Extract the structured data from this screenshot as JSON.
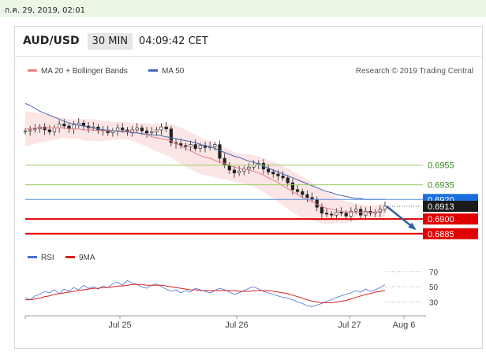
{
  "timestamp": "ก.ค. 29, 2019, 02:01",
  "header": {
    "symbol": "AUD/USD",
    "timeframe": "30 MIN",
    "time": "04:09:42 CET"
  },
  "legend": {
    "ma20_label": "MA 20 + Bollinger Bands",
    "ma50_label": "MA 50",
    "credit": "Research © 2019 Trading Central",
    "rsi_label": "RSI",
    "ma9_label": "9MA"
  },
  "colors": {
    "candle": "#222222",
    "ma20": "#e88080",
    "bb_fill": "#fbe0e0",
    "ma50": "#4a66b0",
    "support_line": "#e00000",
    "resistance_line": "#99cc66",
    "pivot_line": "#5a8de0",
    "pivot_label": "#1a6fe0",
    "current_label": "#1a1a1a",
    "rsi": "#4a6fd8",
    "rsi_ma": "#d82020",
    "arrow": "#2e5fa0"
  },
  "chart_data": [
    {
      "type": "candlestick",
      "title": "AUD/USD",
      "x_ticks": [
        "Jul 25",
        "Jul 26",
        "Jul 27",
        "Aug 6"
      ],
      "ylim": [
        0.6876,
        0.704
      ],
      "levels": [
        {
          "value": 0.6955,
          "label": "0.6955",
          "kind": "resistance"
        },
        {
          "value": 0.6935,
          "label": "0.6935",
          "kind": "resistance"
        },
        {
          "value": 0.692,
          "label": "0.6920",
          "kind": "pivot"
        },
        {
          "value": 0.6913,
          "label": "0.6913",
          "kind": "current"
        },
        {
          "value": 0.69,
          "label": "0.6900",
          "kind": "support"
        },
        {
          "value": 0.6885,
          "label": "0.6885",
          "kind": "support"
        }
      ],
      "price_close": [
        0.699,
        0.6991,
        0.6992,
        0.6994,
        0.6991,
        0.6989,
        0.6993,
        0.6997,
        0.6995,
        0.6992,
        0.6996,
        0.6998,
        0.6995,
        0.6993,
        0.6994,
        0.6991,
        0.699,
        0.6988,
        0.699,
        0.6993,
        0.6991,
        0.6989,
        0.6991,
        0.6993,
        0.699,
        0.6988,
        0.6989,
        0.6991,
        0.6994,
        0.6992,
        0.6978,
        0.6977,
        0.6975,
        0.6974,
        0.6976,
        0.6972,
        0.6975,
        0.6973,
        0.6974,
        0.6976,
        0.6962,
        0.6955,
        0.695,
        0.6947,
        0.6949,
        0.6951,
        0.6953,
        0.6955,
        0.6957,
        0.6951,
        0.6948,
        0.6946,
        0.6944,
        0.6942,
        0.6937,
        0.693,
        0.6928,
        0.6925,
        0.6922,
        0.692,
        0.6912,
        0.6906,
        0.6905,
        0.6904,
        0.6907,
        0.6906,
        0.6903,
        0.6908,
        0.691,
        0.6904,
        0.6908,
        0.6906,
        0.6907,
        0.691,
        0.6913
      ],
      "ma20": [
        0.6992,
        0.6992,
        0.6993,
        0.6993,
        0.6993,
        0.6993,
        0.6993,
        0.6993,
        0.6993,
        0.6992,
        0.6992,
        0.6992,
        0.6991,
        0.6991,
        0.6991,
        0.699,
        0.699,
        0.699,
        0.699,
        0.699,
        0.699,
        0.699,
        0.6989,
        0.6988,
        0.6987,
        0.6986,
        0.6984,
        0.6983,
        0.6982,
        0.6981,
        0.698,
        0.6977,
        0.6975,
        0.6972,
        0.697,
        0.6967,
        0.6965,
        0.6963,
        0.6962,
        0.696,
        0.6958,
        0.6957,
        0.6955,
        0.6953,
        0.6952,
        0.6951,
        0.695,
        0.6949,
        0.6947,
        0.6945,
        0.6942,
        0.694,
        0.6937,
        0.6934,
        0.6931,
        0.6928,
        0.6925,
        0.6922,
        0.692,
        0.6918,
        0.6915,
        0.6913,
        0.6911,
        0.691,
        0.6909,
        0.6908,
        0.6907,
        0.6907,
        0.6907,
        0.6907,
        0.6907,
        0.6907,
        0.6907,
        0.6908,
        0.6909
      ],
      "ma50": [
        0.7018,
        0.7016,
        0.7013,
        0.701,
        0.7008,
        0.7006,
        0.7004,
        0.7002,
        0.7,
        0.6998,
        0.6997,
        0.6996,
        0.6995,
        0.6994,
        0.6993,
        0.6992,
        0.6991,
        0.6991,
        0.699,
        0.699,
        0.6989,
        0.6989,
        0.6988,
        0.6988,
        0.6987,
        0.6987,
        0.6986,
        0.6986,
        0.6985,
        0.6984,
        0.6983,
        0.6982,
        0.6981,
        0.698,
        0.6979,
        0.6978,
        0.6976,
        0.6975,
        0.6974,
        0.6972,
        0.697,
        0.6968,
        0.6966,
        0.6964,
        0.6963,
        0.6961,
        0.6959,
        0.6958,
        0.6956,
        0.6954,
        0.6952,
        0.695,
        0.6948,
        0.6946,
        0.6944,
        0.6942,
        0.694,
        0.6938,
        0.6936,
        0.6934,
        0.6932,
        0.693,
        0.6928,
        0.6927,
        0.6925,
        0.6924,
        0.6923,
        0.6922,
        0.6921,
        0.6921,
        0.692,
        0.692,
        0.692,
        0.692,
        0.692
      ],
      "bb_width": [
        0.0018,
        0.0017,
        0.0016,
        0.0015,
        0.0014,
        0.0013,
        0.0012,
        0.0011,
        0.001,
        0.001,
        0.001,
        0.001,
        0.0011,
        0.0011,
        0.0011,
        0.0011,
        0.001,
        0.001,
        0.0009,
        0.0009,
        0.0009,
        0.0009,
        0.0009,
        0.001,
        0.0011,
        0.0012,
        0.0013,
        0.0014,
        0.0015,
        0.0016,
        0.0017,
        0.0018,
        0.0019,
        0.0019,
        0.0019,
        0.0019,
        0.0019,
        0.0018,
        0.0018,
        0.0017,
        0.0017,
        0.0016,
        0.0016,
        0.0015,
        0.0015,
        0.0015,
        0.0016,
        0.0016,
        0.0017,
        0.0017,
        0.0018,
        0.0019,
        0.002,
        0.002,
        0.0021,
        0.0021,
        0.0021,
        0.0021,
        0.002,
        0.0019,
        0.0018,
        0.0017,
        0.0016,
        0.0015,
        0.0013,
        0.0012,
        0.0011,
        0.001,
        0.0009,
        0.0008,
        0.0007,
        0.0007,
        0.0007,
        0.0007,
        0.0007
      ],
      "projection": {
        "from": 0.6913,
        "to": 0.6885
      }
    },
    {
      "type": "line",
      "title": "RSI",
      "ylim": [
        15,
        75
      ],
      "y_ticks": [
        70,
        50,
        30
      ],
      "overbought": 70,
      "oversold": 30,
      "series": [
        {
          "name": "RSI",
          "values": [
            36,
            33,
            38,
            40,
            44,
            42,
            46,
            41,
            47,
            44,
            49,
            46,
            52,
            48,
            50,
            47,
            51,
            49,
            54,
            56,
            52,
            58,
            55,
            53,
            50,
            48,
            52,
            54,
            50,
            47,
            44,
            46,
            42,
            45,
            43,
            48,
            46,
            44,
            42,
            45,
            48,
            46,
            43,
            40,
            42,
            45,
            48,
            50,
            47,
            44,
            42,
            40,
            38,
            36,
            35,
            33,
            30,
            28,
            25,
            24,
            26,
            28,
            31,
            33,
            36,
            38,
            40,
            42,
            45,
            43,
            47,
            44,
            46,
            49,
            53
          ]
        },
        {
          "name": "9MA",
          "values": [
            33,
            33,
            34,
            35,
            37,
            38,
            40,
            41,
            42,
            43,
            44,
            45,
            46,
            47,
            48,
            48,
            49,
            49,
            50,
            51,
            51,
            52,
            53,
            53,
            53,
            52,
            52,
            52,
            52,
            51,
            50,
            49,
            48,
            47,
            46,
            46,
            45,
            45,
            45,
            45,
            45,
            45,
            45,
            45,
            44,
            44,
            44,
            45,
            45,
            45,
            45,
            44,
            43,
            42,
            41,
            39,
            37,
            35,
            33,
            31,
            30,
            29,
            29,
            29,
            30,
            31,
            32,
            34,
            36,
            38,
            40,
            41,
            43,
            44,
            45
          ]
        }
      ]
    }
  ]
}
